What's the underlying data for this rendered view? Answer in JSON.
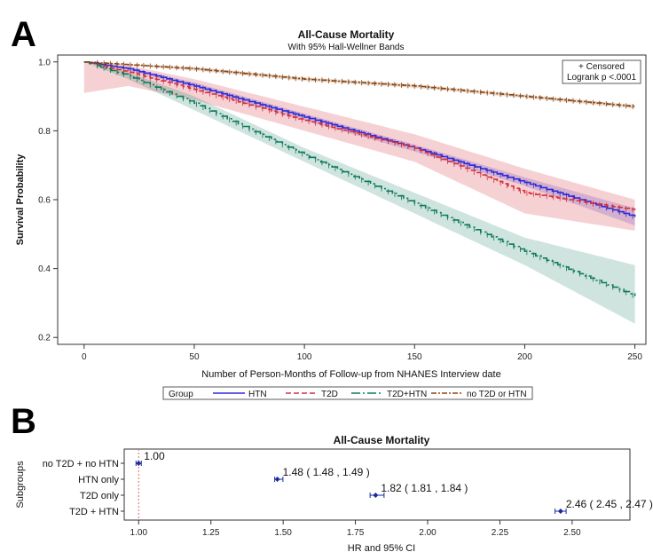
{
  "panel_a": {
    "letter": "A",
    "chart_data": {
      "type": "line",
      "title": "All-Cause Mortality",
      "subtitle": "With 95% Hall-Wellner Bands",
      "xlabel": "Number of Person-Months of Follow-up from NHANES Interview date",
      "ylabel": "Survival Probability",
      "xlim": [
        -12,
        255
      ],
      "ylim": [
        0.18,
        1.02
      ],
      "xticks": [
        "0",
        "50",
        "100",
        "150",
        "200",
        "250"
      ],
      "xtick_values": [
        0,
        50,
        100,
        150,
        200,
        250
      ],
      "yticks": [
        "0.2",
        "0.4",
        "0.6",
        "0.8",
        "1.0"
      ],
      "ytick_values": [
        0.2,
        0.4,
        0.6,
        0.8,
        1.0
      ],
      "inset_legend": [
        "+ Censored",
        "Logrank p <.0001"
      ],
      "legend_title": "Group",
      "series": [
        {
          "name": "HTN",
          "color": "#2b2bd9",
          "x": [
            0,
            20,
            50,
            100,
            150,
            200,
            250
          ],
          "y": [
            1.0,
            0.98,
            0.93,
            0.84,
            0.75,
            0.65,
            0.55
          ],
          "band_upper": [
            1.0,
            0.985,
            0.94,
            0.85,
            0.76,
            0.665,
            0.575
          ],
          "band_lower": [
            1.0,
            0.975,
            0.925,
            0.83,
            0.74,
            0.64,
            0.525
          ]
        },
        {
          "name": "T2D",
          "color": "#d62f3a",
          "x": [
            0,
            20,
            50,
            100,
            150,
            200,
            250
          ],
          "y": [
            1.0,
            0.97,
            0.92,
            0.83,
            0.75,
            0.62,
            0.57
          ],
          "band_upper": [
            1.0,
            0.99,
            0.95,
            0.87,
            0.79,
            0.69,
            0.6
          ],
          "band_lower": [
            0.91,
            0.93,
            0.89,
            0.8,
            0.71,
            0.56,
            0.51
          ]
        },
        {
          "name": "T2D+HTN",
          "color": "#0d7a5a",
          "x": [
            0,
            20,
            50,
            100,
            150,
            200,
            250
          ],
          "y": [
            1.0,
            0.96,
            0.88,
            0.73,
            0.59,
            0.45,
            0.32
          ],
          "band_upper": [
            1.0,
            0.97,
            0.9,
            0.75,
            0.62,
            0.49,
            0.41
          ],
          "band_lower": [
            1.0,
            0.95,
            0.86,
            0.71,
            0.56,
            0.41,
            0.24
          ]
        },
        {
          "name": "no T2D or HTN",
          "color": "#8b4513",
          "x": [
            0,
            50,
            100,
            150,
            200,
            250
          ],
          "y": [
            1.0,
            0.98,
            0.95,
            0.93,
            0.9,
            0.87
          ],
          "band_upper": [
            1.0,
            0.985,
            0.955,
            0.935,
            0.905,
            0.875
          ],
          "band_lower": [
            1.0,
            0.975,
            0.945,
            0.925,
            0.895,
            0.865
          ]
        }
      ],
      "legend_labels": [
        "HTN",
        "T2D",
        "T2D+HTN",
        "no T2D or HTN"
      ]
    }
  },
  "panel_b": {
    "letter": "B",
    "chart_data": {
      "type": "scatter",
      "title": "All-Cause Mortality",
      "xlabel": "HR and 95% CI",
      "ylabel": "Subgroups",
      "xlim": [
        0.95,
        2.7
      ],
      "xticks": [
        "1.00",
        "1.25",
        "1.50",
        "1.75",
        "2.00",
        "2.25",
        "2.50"
      ],
      "xtick_values": [
        1.0,
        1.25,
        1.5,
        1.75,
        2.0,
        2.25,
        2.5
      ],
      "categories": [
        "no T2D + no HTN",
        "HTN only",
        "T2D only",
        "T2D + HTN"
      ],
      "hr": [
        1.0,
        1.48,
        1.82,
        2.46
      ],
      "ci_lower": [
        1.0,
        1.48,
        1.81,
        2.45
      ],
      "ci_upper": [
        1.0,
        1.49,
        1.84,
        2.47
      ],
      "labels": [
        "1.00",
        "1.48 ( 1.48 , 1.49 )",
        "1.82 ( 1.81 , 1.84 )",
        "2.46 ( 2.45 , 2.47 )"
      ],
      "reference_x": 1.0
    }
  },
  "colors": {
    "hr_point": "#1a2a9c",
    "reference_line": "#e06a6a"
  }
}
